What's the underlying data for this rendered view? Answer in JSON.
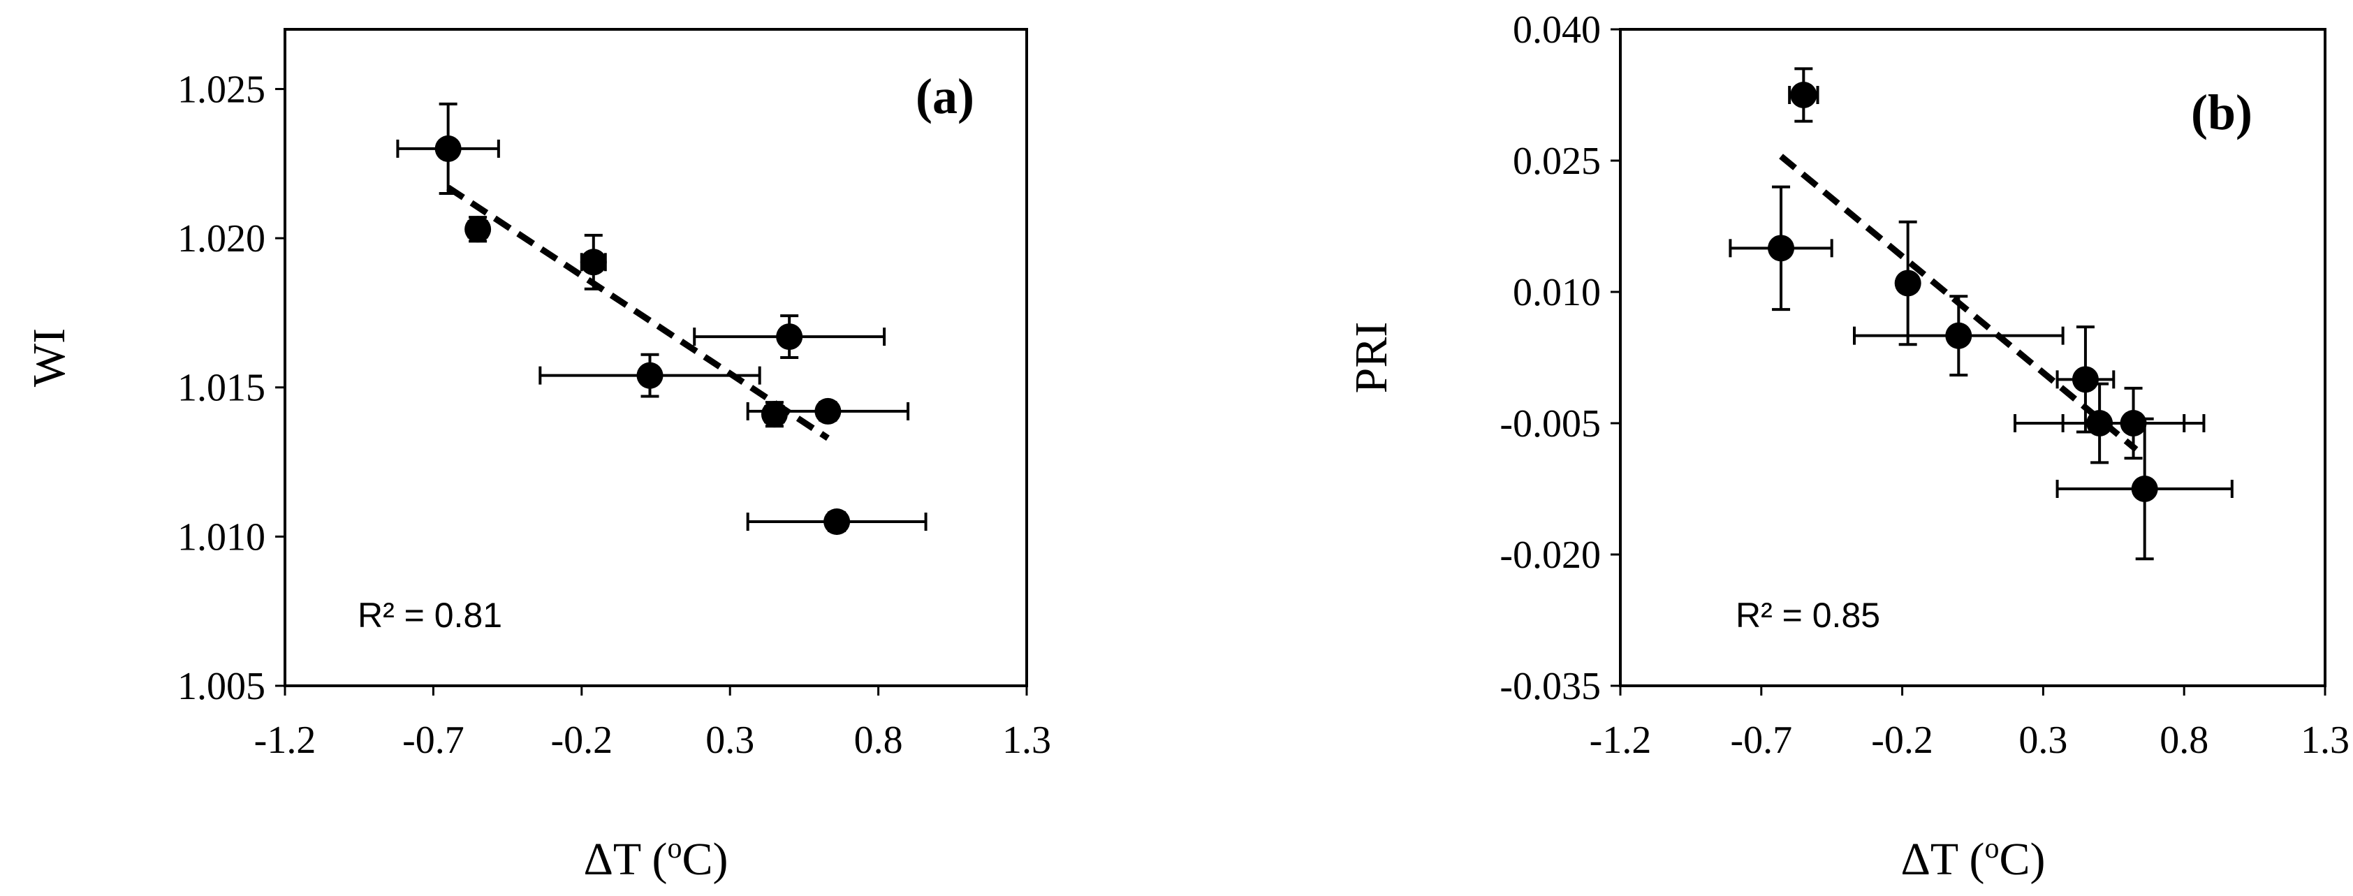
{
  "chart_data": [
    {
      "type": "scatter",
      "panel_label": "(a)",
      "xlabel_prefix": "ΔT (",
      "xlabel_sup": "o",
      "xlabel_suffix": "C)",
      "ylabel": "WI",
      "xlim": [
        -1.2,
        1.3
      ],
      "ylim": [
        1.005,
        1.027
      ],
      "xticks": [
        -1.2,
        -0.7,
        -0.2,
        0.3,
        0.8,
        1.3
      ],
      "xtick_labels": [
        "-1.2",
        "-0.7",
        "-0.2",
        "0.3",
        "0.8",
        "1.3"
      ],
      "yticks": [
        1.005,
        1.01,
        1.015,
        1.02,
        1.025
      ],
      "ytick_labels": [
        "1.005",
        "1.010",
        "1.015",
        "1.020",
        "1.025"
      ],
      "r2_label": "R² = 0.81",
      "points": [
        {
          "x": -0.65,
          "y": 1.023,
          "xerr": 0.17,
          "yerr": 0.0015
        },
        {
          "x": -0.55,
          "y": 1.0203,
          "xerr": 0.03,
          "yerr": 0.0004
        },
        {
          "x": -0.16,
          "y": 1.0192,
          "xerr": 0.04,
          "yerr": 0.0009
        },
        {
          "x": 0.03,
          "y": 1.0154,
          "xerr": 0.37,
          "yerr": 0.0007
        },
        {
          "x": 0.5,
          "y": 1.0167,
          "xerr": 0.32,
          "yerr": 0.0007
        },
        {
          "x": 0.45,
          "y": 1.0141,
          "xerr": 0.03,
          "yerr": 0.0004
        },
        {
          "x": 0.63,
          "y": 1.0142,
          "xerr": 0.27,
          "yerr": 0.0003
        },
        {
          "x": 0.66,
          "y": 1.0105,
          "xerr": 0.3,
          "yerr": 0.0003
        }
      ],
      "trendline": {
        "x1": -0.65,
        "y1": 1.0217,
        "x2": 0.63,
        "y2": 1.0133
      }
    },
    {
      "type": "scatter",
      "panel_label": "(b)",
      "xlabel_prefix": "ΔT (",
      "xlabel_sup": "o",
      "xlabel_suffix": "C)",
      "ylabel": "PRI",
      "xlim": [
        -1.2,
        1.3
      ],
      "ylim": [
        -0.035,
        0.04
      ],
      "xticks": [
        -1.2,
        -0.7,
        -0.2,
        0.3,
        0.8,
        1.3
      ],
      "xtick_labels": [
        "-1.2",
        "-0.7",
        "-0.2",
        "0.3",
        "0.8",
        "1.3"
      ],
      "yticks": [
        -0.035,
        -0.02,
        -0.005,
        0.01,
        0.025,
        0.04
      ],
      "ytick_labels": [
        "-0.035",
        "-0.020",
        "-0.005",
        "0.010",
        "0.025",
        "0.040"
      ],
      "r2_label": "R² = 0.85",
      "points": [
        {
          "x": -0.55,
          "y": 0.0325,
          "xerr": 0.05,
          "yerr": 0.003
        },
        {
          "x": -0.63,
          "y": 0.015,
          "xerr": 0.18,
          "yerr": 0.007
        },
        {
          "x": -0.18,
          "y": 0.011,
          "xerr": 0.03,
          "yerr": 0.007
        },
        {
          "x": 0.0,
          "y": 0.005,
          "xerr": 0.37,
          "yerr": 0.0045
        },
        {
          "x": 0.45,
          "y": 0.0,
          "xerr": 0.1,
          "yerr": 0.006
        },
        {
          "x": 0.5,
          "y": -0.005,
          "xerr": 0.3,
          "yerr": 0.0045
        },
        {
          "x": 0.62,
          "y": -0.005,
          "xerr": 0.25,
          "yerr": 0.004
        },
        {
          "x": 0.66,
          "y": -0.0125,
          "xerr": 0.31,
          "yerr": 0.008
        }
      ],
      "trendline": {
        "x1": -0.63,
        "y1": 0.0255,
        "x2": 0.63,
        "y2": -0.008
      }
    }
  ]
}
